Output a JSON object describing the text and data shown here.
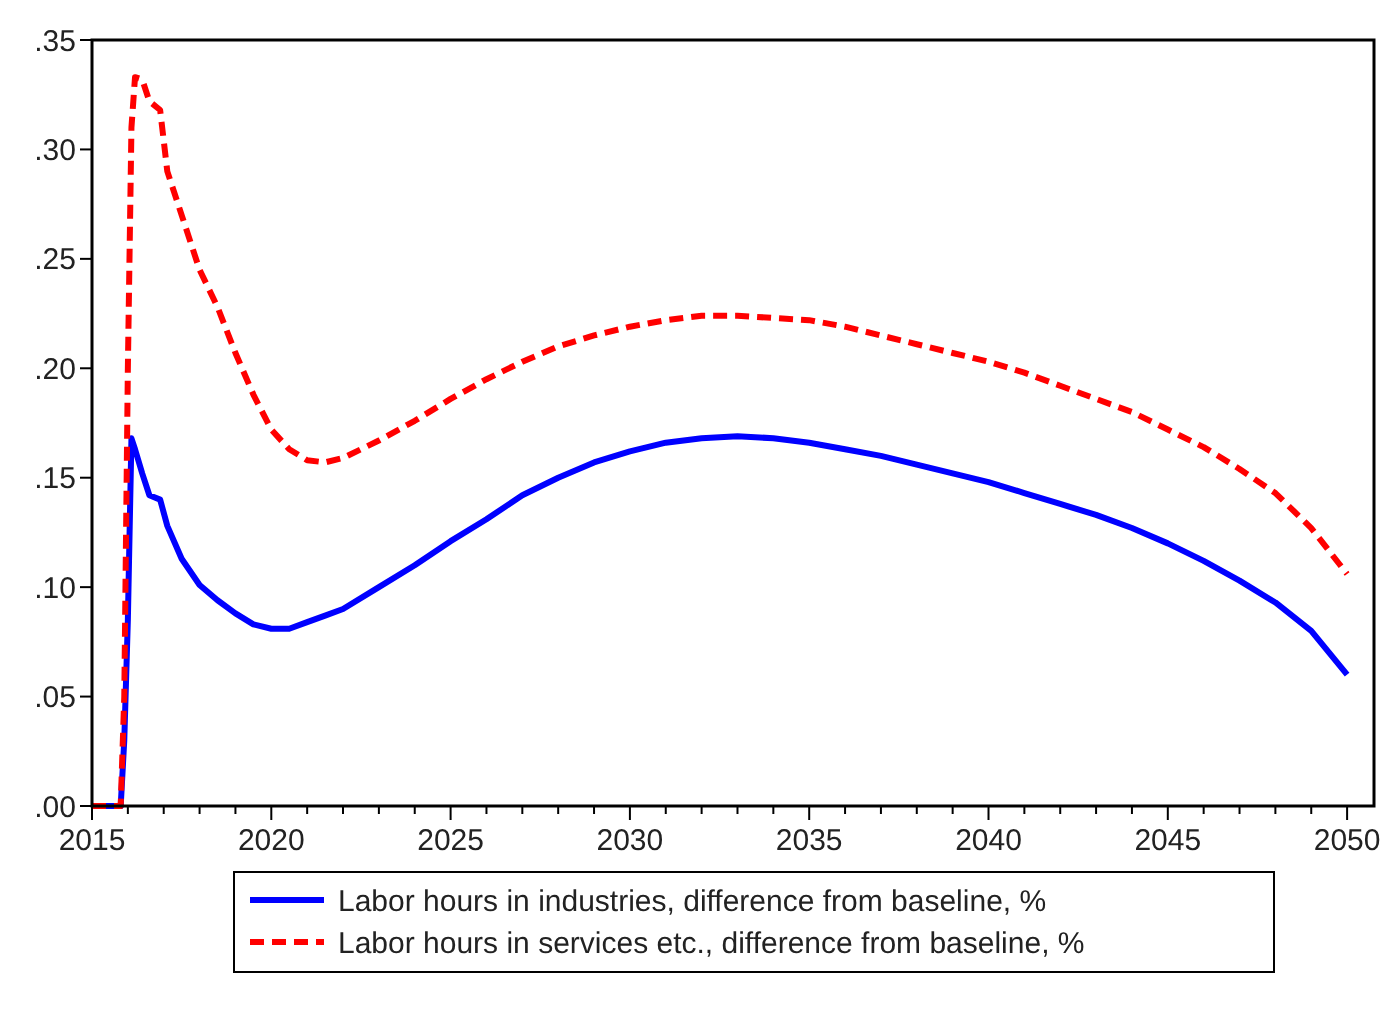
{
  "chart_data": {
    "type": "line",
    "xlim": [
      2015,
      2050.75
    ],
    "xticks": [
      2015,
      {
        "value": 2016,
        "label": null
      },
      {
        "value": 2017,
        "label": null
      },
      {
        "value": 2018,
        "label": null
      },
      {
        "value": 2019,
        "label": null
      },
      2020,
      {
        "value": 2021,
        "label": null
      },
      {
        "value": 2022,
        "label": null
      },
      {
        "value": 2023,
        "label": null
      },
      {
        "value": 2024,
        "label": null
      },
      2025,
      {
        "value": 2026,
        "label": null
      },
      {
        "value": 2027,
        "label": null
      },
      {
        "value": 2028,
        "label": null
      },
      {
        "value": 2029,
        "label": null
      },
      2030,
      {
        "value": 2031,
        "label": null
      },
      {
        "value": 2032,
        "label": null
      },
      {
        "value": 2033,
        "label": null
      },
      {
        "value": 2034,
        "label": null
      },
      2035,
      {
        "value": 2036,
        "label": null
      },
      {
        "value": 2037,
        "label": null
      },
      {
        "value": 2038,
        "label": null
      },
      {
        "value": 2039,
        "label": null
      },
      2040,
      {
        "value": 2041,
        "label": null
      },
      {
        "value": 2042,
        "label": null
      },
      {
        "value": 2043,
        "label": null
      },
      {
        "value": 2044,
        "label": null
      },
      2045,
      {
        "value": 2046,
        "label": null
      },
      {
        "value": 2047,
        "label": null
      },
      {
        "value": 2048,
        "label": null
      },
      {
        "value": 2049,
        "label": null
      },
      2050
    ],
    "ylim": [
      0,
      0.35
    ],
    "yticks": [
      {
        "value": 0,
        "label": ".00"
      },
      {
        "value": 0.05,
        "label": ".05"
      },
      {
        "value": 0.1,
        "label": ".10"
      },
      {
        "value": 0.15,
        "label": ".15"
      },
      {
        "value": 0.2,
        "label": ".20"
      },
      {
        "value": 0.25,
        "label": ".25"
      },
      {
        "value": 0.3,
        "label": ".30"
      },
      {
        "value": 0.35,
        "label": ".35"
      }
    ],
    "grid": false,
    "legend": "bottom",
    "x": [
      2015,
      2015.8,
      2015.9,
      2016.0,
      2016.1,
      2016.2,
      2016.4,
      2016.6,
      2016.9,
      2017.1,
      2017.5,
      2018,
      2018.5,
      2019,
      2019.5,
      2020,
      2020.5,
      2021,
      2021.5,
      2022,
      2023,
      2024,
      2025,
      2026,
      2027,
      2028,
      2029,
      2030,
      2031,
      2032,
      2033,
      2034,
      2035,
      2036,
      2037,
      2038,
      2039,
      2040,
      2041,
      2042,
      2043,
      2044,
      2045,
      2046,
      2047,
      2048,
      2049,
      2050
    ],
    "series": [
      {
        "name": "Labor hours in industries, difference from baseline, %",
        "color": "#0000ff",
        "line_style": "solid",
        "values": [
          0,
          0,
          0.03,
          0.085,
          0.168,
          0.163,
          0.152,
          0.142,
          0.14,
          0.128,
          0.113,
          0.101,
          0.094,
          0.088,
          0.083,
          0.081,
          0.081,
          0.084,
          0.087,
          0.09,
          0.1,
          0.11,
          0.121,
          0.131,
          0.142,
          0.15,
          0.157,
          0.162,
          0.166,
          0.168,
          0.169,
          0.168,
          0.166,
          0.163,
          0.16,
          0.156,
          0.152,
          0.148,
          0.143,
          0.138,
          0.133,
          0.127,
          0.12,
          0.112,
          0.103,
          0.093,
          0.08,
          0.06
        ]
      },
      {
        "name": "Labor hours in services etc., difference from baseline, %",
        "color": "#ff0000",
        "line_style": "dashed",
        "values": [
          0,
          0,
          0.05,
          0.2,
          0.31,
          0.333,
          0.332,
          0.322,
          0.318,
          0.29,
          0.27,
          0.245,
          0.228,
          0.207,
          0.188,
          0.172,
          0.163,
          0.158,
          0.157,
          0.159,
          0.167,
          0.176,
          0.186,
          0.195,
          0.203,
          0.21,
          0.215,
          0.219,
          0.222,
          0.224,
          0.224,
          0.223,
          0.222,
          0.219,
          0.215,
          0.211,
          0.207,
          0.203,
          0.198,
          0.192,
          0.186,
          0.18,
          0.172,
          0.164,
          0.154,
          0.143,
          0.127,
          0.106
        ]
      }
    ]
  }
}
